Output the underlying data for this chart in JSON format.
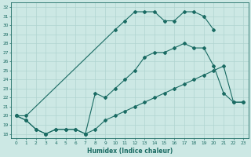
{
  "xlabel": "Humidex (Indice chaleur)",
  "xlim": [
    -0.5,
    23.5
  ],
  "ylim": [
    17.5,
    32.5
  ],
  "xticks": [
    0,
    1,
    2,
    3,
    4,
    5,
    6,
    7,
    8,
    9,
    10,
    11,
    12,
    13,
    14,
    15,
    16,
    17,
    18,
    19,
    20,
    21,
    22,
    23
  ],
  "yticks": [
    18,
    19,
    20,
    21,
    22,
    23,
    24,
    25,
    26,
    27,
    28,
    29,
    30,
    31,
    32
  ],
  "bg_color": "#cce8e4",
  "grid_color": "#b0d4d0",
  "line_color": "#1a6b63",
  "line1_x": [
    0,
    1,
    2,
    3,
    4,
    5,
    6,
    7,
    8,
    9,
    10,
    11,
    12,
    13,
    14,
    15,
    16,
    17,
    18,
    19,
    20,
    21,
    22,
    23
  ],
  "line1_y": [
    20.0,
    19.5,
    18.5,
    18.0,
    18.5,
    18.5,
    18.5,
    18.0,
    18.5,
    19.5,
    20.0,
    20.5,
    21.0,
    21.5,
    22.0,
    22.5,
    23.0,
    23.5,
    24.0,
    24.5,
    25.0,
    25.5,
    21.5,
    21.5
  ],
  "line2_x": [
    0,
    1,
    2,
    3,
    4,
    5,
    6,
    7,
    8,
    9,
    10,
    11,
    12,
    13,
    14,
    15,
    16,
    17,
    18,
    19,
    20,
    21,
    22,
    23
  ],
  "line2_y": [
    20.0,
    19.5,
    18.5,
    18.0,
    18.5,
    18.5,
    18.5,
    18.0,
    22.5,
    22.0,
    23.0,
    24.0,
    25.0,
    26.5,
    27.0,
    27.0,
    27.5,
    28.0,
    27.5,
    27.5,
    25.5,
    22.5,
    21.5,
    21.5
  ],
  "line3_x": [
    0,
    1,
    2,
    3,
    4,
    5,
    6,
    7,
    8,
    9,
    10,
    11,
    12,
    13,
    14,
    15,
    16,
    17,
    18,
    19,
    20,
    21,
    22,
    23
  ],
  "line3_y": [
    20.0,
    20.0,
    null,
    null,
    null,
    null,
    null,
    null,
    null,
    null,
    29.5,
    30.5,
    31.5,
    31.5,
    31.5,
    30.5,
    30.5,
    31.5,
    31.5,
    31.0,
    29.5,
    null,
    null,
    null
  ]
}
